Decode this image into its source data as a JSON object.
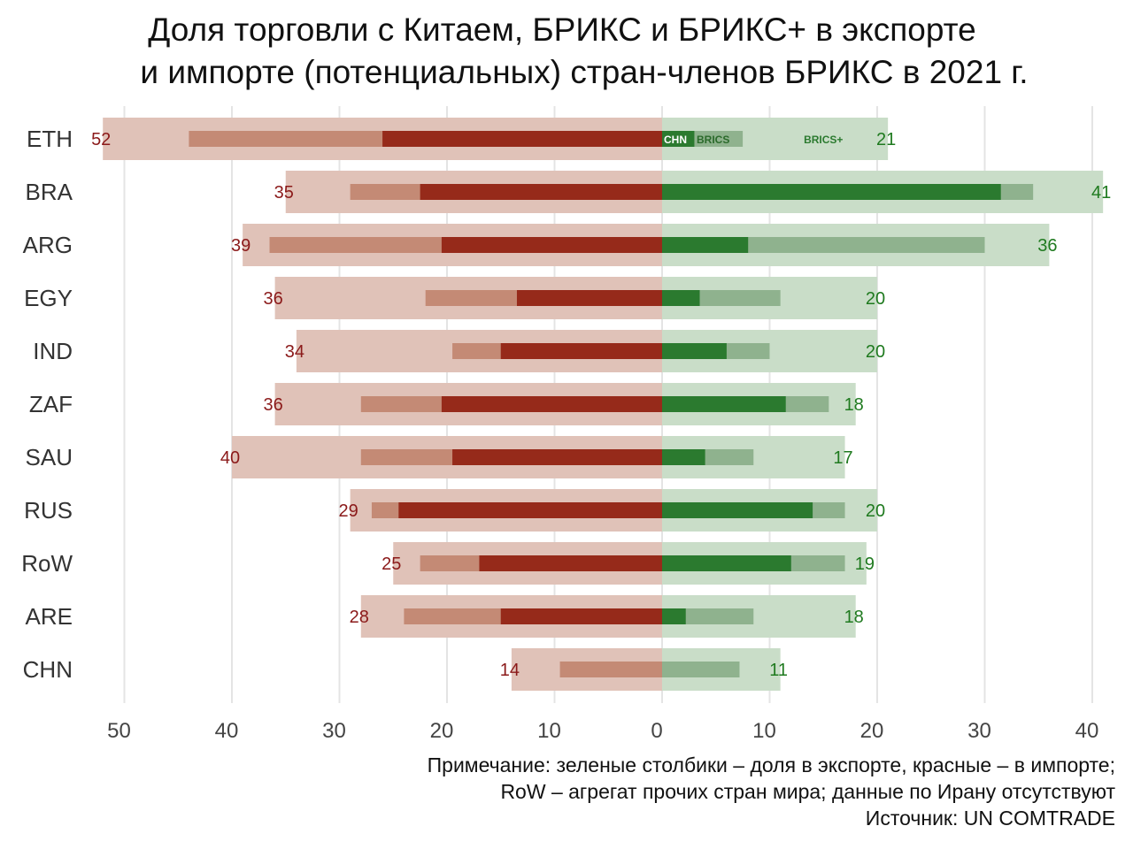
{
  "title_line1": "Доля торговли с Китаем, БРИКС и БРИКС+ в экспорте",
  "title_line2": "и импорте (потенциальных) стран-членов БРИКС в 2021 г.",
  "note_line1": "Примечание: зеленые столбики – доля в экспорте, красные – в импорте;",
  "note_line2": "RoW – агрегат прочих стран мира; данные по Ирану отсутствуют",
  "note_line3": "Источник: UN COMTRADE",
  "legend_labels": {
    "chn": "CHN",
    "brics": "BRICS",
    "brics_plus": "BRICS+"
  },
  "colors": {
    "import_chn": "#962a1a",
    "import_brics": "#c48a75",
    "import_bricsplus": "#e0c2b8",
    "export_chn": "#2b7a2f",
    "export_brics": "#8fb28e",
    "export_bricsplus": "#c9ddc8",
    "grid": "#e4e4e4"
  },
  "chart_data": {
    "type": "bar",
    "orientation": "horizontal-diverging",
    "title": "Доля торговли с Китаем, БРИКС и БРИКС+ в экспорте и импорте (потенциальных) стран-членов БРИКС в 2021 г.",
    "x_ticks": [
      "50",
      "40",
      "30",
      "20",
      "10",
      "0",
      "10",
      "20",
      "30",
      "40"
    ],
    "xlim": [
      -52,
      41
    ],
    "grid": true,
    "categories": [
      "ETH",
      "BRA",
      "ARG",
      "EGY",
      "IND",
      "ZAF",
      "SAU",
      "RUS",
      "RoW",
      "ARE",
      "CHN"
    ],
    "series": [
      {
        "name": "CHN",
        "side": "import",
        "values": [
          26,
          22.5,
          20.5,
          13.5,
          15,
          20.5,
          19.5,
          24.5,
          17,
          15,
          0
        ]
      },
      {
        "name": "BRICS",
        "side": "import",
        "values": [
          44,
          29,
          36.5,
          22,
          19.5,
          28,
          28,
          27,
          22.5,
          24,
          9.5
        ]
      },
      {
        "name": "BRICS+",
        "side": "import",
        "values": [
          52,
          35,
          39,
          36,
          34,
          36,
          40,
          29,
          25,
          28,
          14
        ]
      },
      {
        "name": "CHN",
        "side": "export",
        "values": [
          3,
          31.5,
          8,
          3.5,
          6,
          11.5,
          4,
          14,
          12,
          2.2,
          0
        ]
      },
      {
        "name": "BRICS",
        "side": "export",
        "values": [
          7.5,
          34.5,
          30,
          11,
          10,
          15.5,
          8.5,
          17,
          17,
          8.5,
          7.2
        ]
      },
      {
        "name": "BRICS+",
        "side": "export",
        "values": [
          21,
          41,
          36,
          20,
          20,
          18,
          17,
          20,
          19,
          18,
          11
        ]
      }
    ],
    "import_labels": [
      "52",
      "35",
      "39",
      "36",
      "34",
      "36",
      "40",
      "29",
      "25",
      "28",
      "14"
    ],
    "export_labels": [
      "21",
      "41",
      "36",
      "20",
      "20",
      "18",
      "17",
      "20",
      "19",
      "18",
      "11"
    ]
  }
}
